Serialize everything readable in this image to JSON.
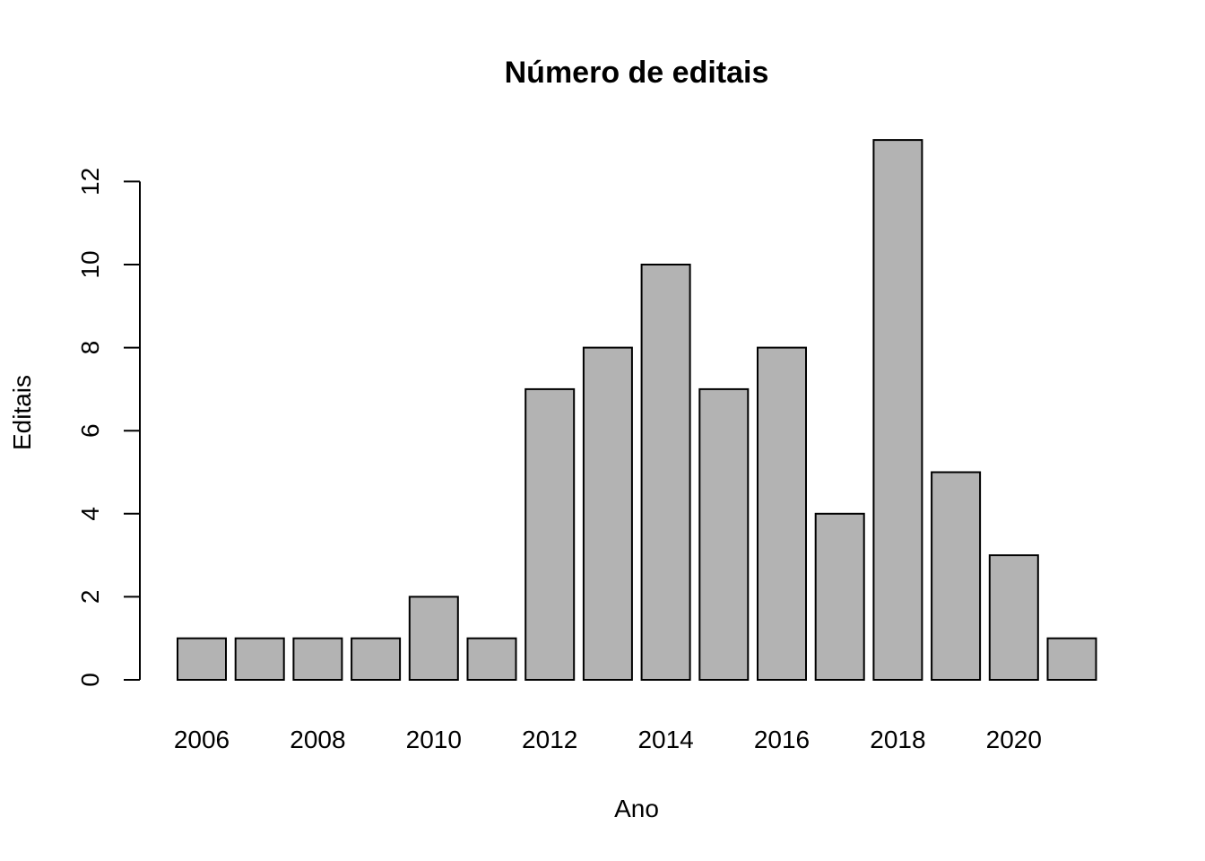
{
  "chart_data": {
    "type": "bar",
    "title": "Número de editais",
    "xlabel": "Ano",
    "ylabel": "Editais",
    "categories": [
      "2006",
      "2007",
      "2008",
      "2009",
      "2010",
      "2011",
      "2012",
      "2013",
      "2014",
      "2015",
      "2016",
      "2017",
      "2018",
      "2019",
      "2020",
      "2021"
    ],
    "values": [
      1,
      1,
      1,
      1,
      2,
      1,
      7,
      8,
      10,
      7,
      8,
      4,
      13,
      5,
      3,
      1
    ],
    "x_tick_labels": [
      "2006",
      "2008",
      "2010",
      "2012",
      "2014",
      "2016",
      "2018",
      "2020"
    ],
    "y_ticks": [
      0,
      2,
      4,
      6,
      8,
      10,
      12
    ],
    "ylim": [
      0,
      13
    ],
    "grid": false,
    "bar_color": "#b3b3b3"
  }
}
